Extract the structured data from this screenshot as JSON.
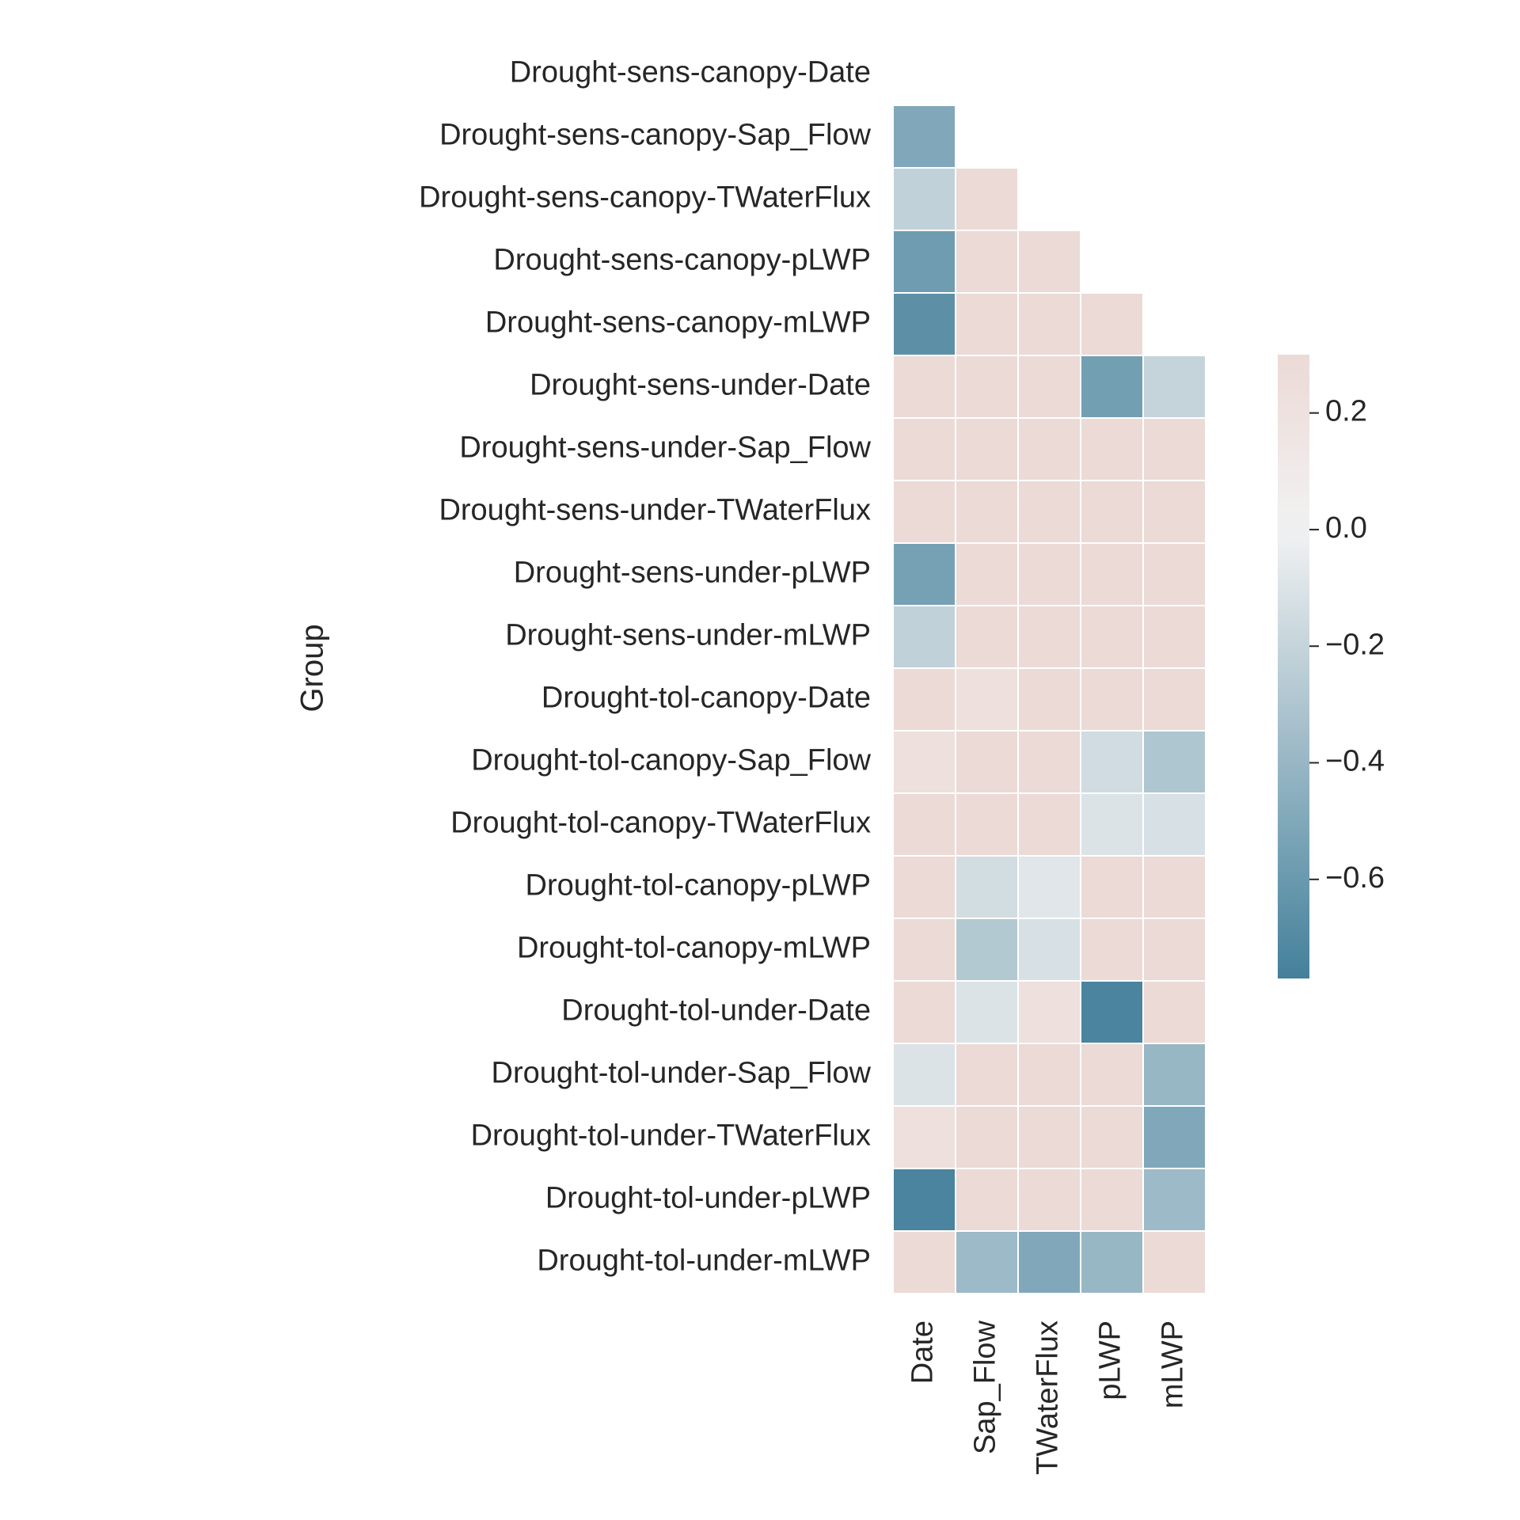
{
  "chart_data": {
    "type": "heatmap",
    "title": "",
    "xlabel": "",
    "ylabel": "Group",
    "x_categories": [
      "Date",
      "Sap_Flow",
      "TWaterFlux",
      "pLWP",
      "mLWP"
    ],
    "y_categories": [
      "Drought-sens-canopy-Date",
      "Drought-sens-canopy-Sap_Flow",
      "Drought-sens-canopy-TWaterFlux",
      "Drought-sens-canopy-pLWP",
      "Drought-sens-canopy-mLWP",
      "Drought-sens-under-Date",
      "Drought-sens-under-Sap_Flow",
      "Drought-sens-under-TWaterFlux",
      "Drought-sens-under-pLWP",
      "Drought-sens-under-mLWP",
      "Drought-tol-canopy-Date",
      "Drought-tol-canopy-Sap_Flow",
      "Drought-tol-canopy-TWaterFlux",
      "Drought-tol-canopy-pLWP",
      "Drought-tol-canopy-mLWP",
      "Drought-tol-under-Date",
      "Drought-tol-under-Sap_Flow",
      "Drought-tol-under-TWaterFlux",
      "Drought-tol-under-pLWP",
      "Drought-tol-under-mLWP"
    ],
    "values": [
      [
        null,
        null,
        null,
        null,
        null
      ],
      [
        -0.5,
        null,
        null,
        null,
        null
      ],
      [
        -0.22,
        0.3,
        null,
        null,
        null
      ],
      [
        -0.58,
        0.3,
        0.3,
        null,
        null
      ],
      [
        -0.66,
        0.3,
        0.3,
        0.3,
        null
      ],
      [
        0.3,
        0.3,
        0.3,
        -0.56,
        -0.2
      ],
      [
        0.3,
        0.3,
        0.3,
        0.3,
        0.3
      ],
      [
        0.3,
        0.3,
        0.3,
        0.3,
        0.3
      ],
      [
        -0.55,
        0.3,
        0.3,
        0.3,
        0.3
      ],
      [
        -0.22,
        0.3,
        0.3,
        0.3,
        0.3
      ],
      [
        0.3,
        0.22,
        0.3,
        0.3,
        0.3
      ],
      [
        0.22,
        0.3,
        0.3,
        -0.15,
        -0.3
      ],
      [
        0.3,
        0.3,
        0.3,
        -0.1,
        -0.12
      ],
      [
        0.3,
        -0.14,
        -0.08,
        0.3,
        0.3
      ],
      [
        0.3,
        -0.28,
        -0.12,
        0.3,
        0.3
      ],
      [
        0.3,
        -0.1,
        0.22,
        -0.74,
        0.3
      ],
      [
        -0.1,
        0.3,
        0.3,
        0.3,
        -0.4
      ],
      [
        0.22,
        0.3,
        0.3,
        0.3,
        -0.5
      ],
      [
        -0.74,
        0.3,
        0.3,
        0.3,
        -0.38
      ],
      [
        0.3,
        -0.38,
        -0.5,
        -0.4,
        0.3
      ]
    ],
    "colorbar": {
      "vmin": -0.77,
      "vmax": 0.3,
      "ticks": [
        0.2,
        0.0,
        -0.2,
        -0.4,
        -0.6
      ],
      "tick_labels": [
        "0.2",
        "0.0",
        "−0.2",
        "−0.4",
        "−0.6"
      ],
      "colors": {
        "negative_end": "#44809b",
        "center": "#f2f2f2",
        "positive_end": "#e1b4a9"
      }
    },
    "mask": "upper-triangle-including-diagonal",
    "grid_lines": "white"
  }
}
